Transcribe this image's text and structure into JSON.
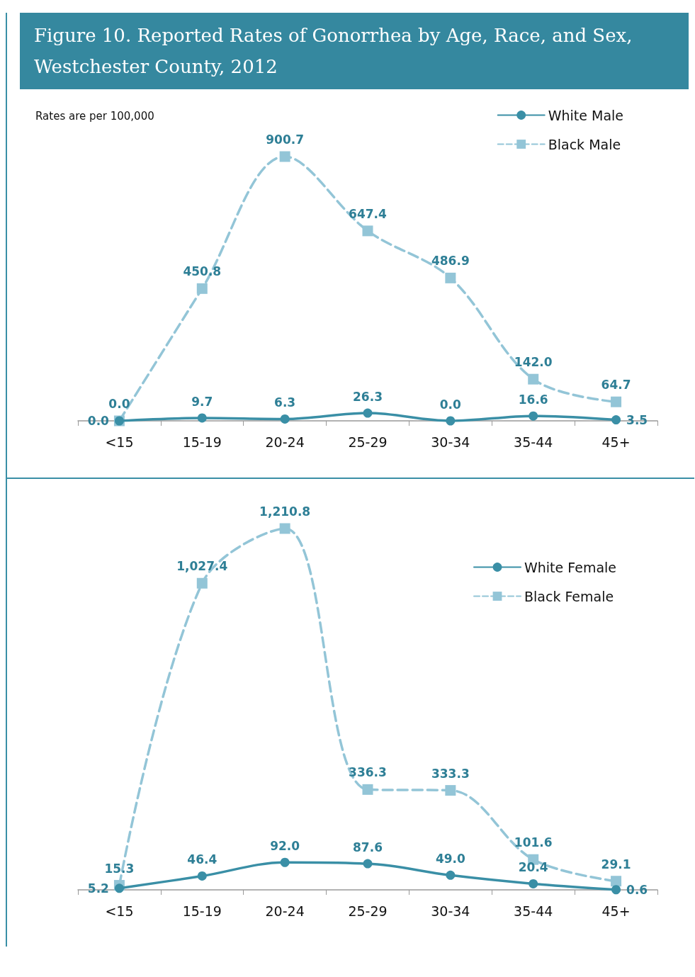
{
  "chart_data": [
    {
      "type": "line",
      "title": "Figure 10.  Reported Rates of Gonorrhea by Age, Race, and Sex, Westchester County, 2012",
      "annotations": [
        "Rates are per 100,000"
      ],
      "categories": [
        "<15",
        "15-19",
        "20-24",
        "25-29",
        "30-34",
        "35-44",
        "45+"
      ],
      "legend": "top right",
      "grid": false,
      "series": [
        {
          "name": "White Male",
          "color": "#3a8fa6",
          "marker": "circle",
          "line_style": "solid",
          "values": [
            0.0,
            9.7,
            6.3,
            26.3,
            0.0,
            16.6,
            3.5
          ],
          "value_labels": [
            "0.0",
            "9.7",
            "6.3",
            "26.3",
            "0.0",
            "16.6",
            "3.5"
          ]
        },
        {
          "name": "Black Male",
          "color": "#93c5d7",
          "marker": "square",
          "line_style": "dashed",
          "values": [
            0.0,
            450.8,
            900.7,
            647.4,
            486.9,
            142.0,
            64.7
          ],
          "value_labels": [
            "0.0",
            "450.8",
            "900.7",
            "647.4",
            "486.9",
            "142.0",
            "64.7"
          ]
        }
      ]
    },
    {
      "type": "line",
      "categories": [
        "<15",
        "15-19",
        "20-24",
        "25-29",
        "30-34",
        "35-44",
        "45+"
      ],
      "legend": "top right",
      "grid": false,
      "series": [
        {
          "name": "White Female",
          "color": "#3a8fa6",
          "marker": "circle",
          "line_style": "solid",
          "values": [
            5.2,
            46.4,
            92.0,
            87.6,
            49.0,
            20.4,
            0.6
          ],
          "value_labels": [
            "5.2",
            "46.4",
            "92.0",
            "87.6",
            "49.0",
            "20.4",
            "0.6"
          ]
        },
        {
          "name": "Black Female",
          "color": "#93c5d7",
          "marker": "square",
          "line_style": "dashed",
          "values": [
            15.3,
            1027.4,
            1210.8,
            336.3,
            333.3,
            101.6,
            29.1
          ],
          "value_labels": [
            "15.3",
            "1,027.4",
            "1,210.8",
            "336.3",
            "333.3",
            "101.6",
            "29.1"
          ]
        }
      ]
    }
  ]
}
